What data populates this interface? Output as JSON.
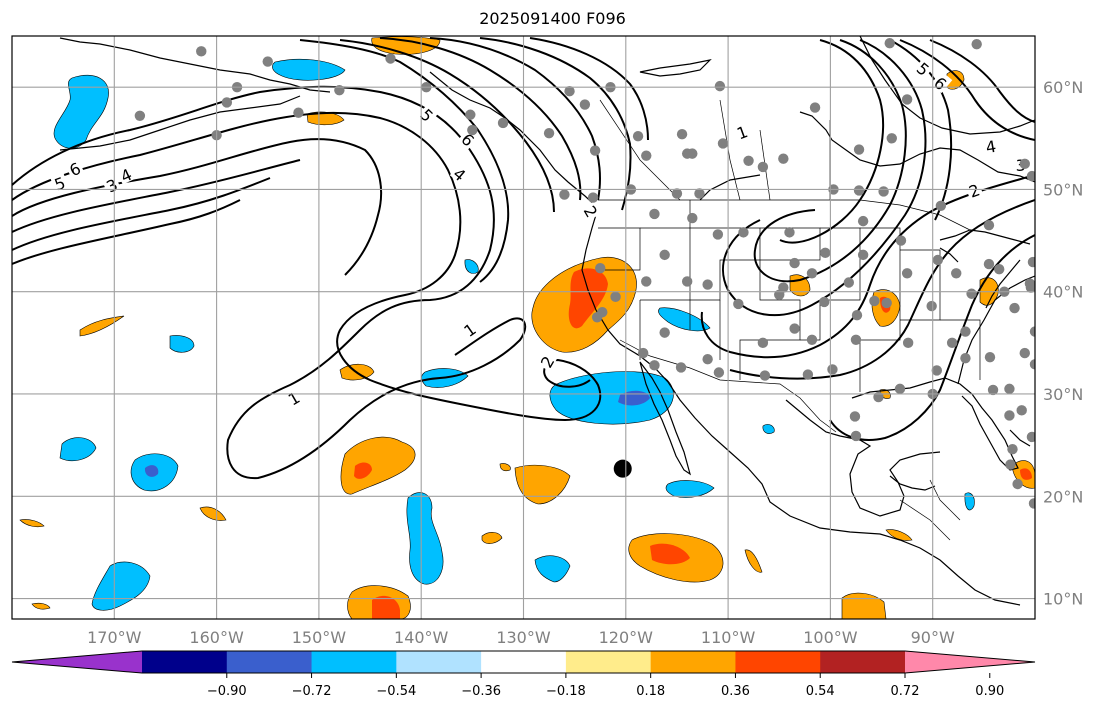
{
  "title": "2025091400 F096",
  "map": {
    "lon_range": [
      -180,
      -80
    ],
    "lat_range": [
      8,
      65
    ],
    "lon_ticks": [
      {
        "value": -170,
        "label": "170°W"
      },
      {
        "value": -160,
        "label": "160°W"
      },
      {
        "value": -150,
        "label": "150°W"
      },
      {
        "value": -140,
        "label": "140°W"
      },
      {
        "value": -130,
        "label": "130°W"
      },
      {
        "value": -120,
        "label": "120°W"
      },
      {
        "value": -110,
        "label": "110°W"
      },
      {
        "value": -100,
        "label": "100°W"
      },
      {
        "value": -90,
        "label": "90°W"
      }
    ],
    "lat_ticks": [
      {
        "value": 60,
        "label": "60°N"
      },
      {
        "value": 50,
        "label": "50°N"
      },
      {
        "value": 40,
        "label": "40°N"
      },
      {
        "value": 30,
        "label": "30°N"
      },
      {
        "value": 20,
        "label": "20°N"
      },
      {
        "value": 10,
        "label": "10°N"
      }
    ],
    "grid": true,
    "marker_big": {
      "lon": -120.3,
      "lat": 22.7,
      "color": "#000000"
    },
    "station_color": "#808080",
    "stations": [
      [
        -161.5,
        63.5
      ],
      [
        -155,
        62.5
      ],
      [
        -143,
        62.8
      ],
      [
        -158,
        60
      ],
      [
        -148,
        59.7
      ],
      [
        -167.5,
        57.2
      ],
      [
        -159,
        58.5
      ],
      [
        -152,
        57.5
      ],
      [
        -160,
        55.3
      ],
      [
        -139.5,
        60
      ],
      [
        -132,
        56.5
      ],
      [
        -125.5,
        59.6
      ],
      [
        -124,
        58.3
      ],
      [
        -135.2,
        57.3
      ],
      [
        -135,
        55.8
      ],
      [
        -127.5,
        55.5
      ],
      [
        -121.5,
        60
      ],
      [
        -110.8,
        60.1
      ],
      [
        -94.2,
        64.3
      ],
      [
        -85.7,
        64.2
      ],
      [
        -92.5,
        58.8
      ],
      [
        -101.5,
        58
      ],
      [
        -114.5,
        55.4
      ],
      [
        -118.8,
        55.2
      ],
      [
        -113.5,
        53.5
      ],
      [
        -114,
        53.5
      ],
      [
        -110.5,
        54.5
      ],
      [
        -108,
        52.8
      ],
      [
        -106.6,
        52.2
      ],
      [
        -104.6,
        53
      ],
      [
        -97.2,
        53.9
      ],
      [
        -94,
        55
      ],
      [
        -99.7,
        50
      ],
      [
        -97.2,
        49.9
      ],
      [
        -94.8,
        49.8
      ],
      [
        -89.2,
        48.4
      ],
      [
        -84.5,
        46.5
      ],
      [
        -81,
        52.5
      ],
      [
        -80.3,
        51.3
      ],
      [
        -123,
        53.8
      ],
      [
        -123.2,
        49.2
      ],
      [
        -126,
        49.5
      ],
      [
        -119.5,
        50
      ],
      [
        -115,
        49.6
      ],
      [
        -112.8,
        49.6
      ],
      [
        -118,
        53.3
      ],
      [
        -117.2,
        47.6
      ],
      [
        -113.5,
        47.2
      ],
      [
        -108.5,
        45.8
      ],
      [
        -104,
        45.8
      ],
      [
        -103.5,
        42.8
      ],
      [
        -111,
        45.6
      ],
      [
        -116.2,
        43.6
      ],
      [
        -114,
        41
      ],
      [
        -118,
        41
      ],
      [
        -109,
        38.8
      ],
      [
        -105,
        39.7
      ],
      [
        -112,
        40.7
      ],
      [
        -122.5,
        42.3
      ],
      [
        -122.8,
        37.5
      ],
      [
        -121,
        39.5
      ],
      [
        -122.3,
        38
      ],
      [
        -104.6,
        40.4
      ],
      [
        -101.8,
        41.8
      ],
      [
        -100.5,
        43.8
      ],
      [
        -96.8,
        46.9
      ],
      [
        -96.8,
        43.6
      ],
      [
        -98.2,
        40.9
      ],
      [
        -100.6,
        39
      ],
      [
        -97.4,
        37.7
      ],
      [
        -95.7,
        39.1
      ],
      [
        -93.1,
        45
      ],
      [
        -92.5,
        41.8
      ],
      [
        -89.5,
        43.1
      ],
      [
        -87.7,
        41.8
      ],
      [
        -86.2,
        39.8
      ],
      [
        -84.5,
        42.7
      ],
      [
        -83,
        40
      ],
      [
        -80.4,
        40.4
      ],
      [
        -88.1,
        35
      ],
      [
        -86.8,
        36.1
      ],
      [
        -90.1,
        38.6
      ],
      [
        -94.5,
        38.9
      ],
      [
        -92.4,
        35
      ],
      [
        -84.4,
        33.6
      ],
      [
        -86.8,
        33.5
      ],
      [
        -89.6,
        32.3
      ],
      [
        -90,
        30
      ],
      [
        -93.2,
        30.5
      ],
      [
        -95.3,
        29.7
      ],
      [
        -97.5,
        35.3
      ],
      [
        -99.8,
        32.4
      ],
      [
        -101.8,
        35.3
      ],
      [
        -106.6,
        35
      ],
      [
        -103.5,
        36.4
      ],
      [
        -110.9,
        32.1
      ],
      [
        -112,
        33.4
      ],
      [
        -114.6,
        32.6
      ],
      [
        -117.2,
        32.8
      ],
      [
        -118.3,
        34
      ],
      [
        -116.2,
        36
      ],
      [
        -106.4,
        31.8
      ],
      [
        -102.2,
        31.9
      ],
      [
        -97.5,
        25.9
      ],
      [
        -97.6,
        27.8
      ],
      [
        -82.5,
        27.9
      ],
      [
        -81.3,
        28.4
      ],
      [
        -80.3,
        25.8
      ],
      [
        -84.1,
        30.4
      ],
      [
        -82.5,
        30.5
      ],
      [
        -80,
        32.9
      ],
      [
        -81,
        34
      ],
      [
        -80,
        36.1
      ],
      [
        -82,
        38.4
      ],
      [
        -80.5,
        40.8
      ],
      [
        -83.5,
        42.2
      ],
      [
        -80.2,
        42.9
      ],
      [
        -81.7,
        21.2
      ],
      [
        -80.1,
        19.3
      ],
      [
        -82.2,
        24.6
      ],
      [
        -82.4,
        23.1
      ]
    ],
    "contour_labels": [
      {
        "text": "6",
        "lon": -173.8,
        "lat": 51.9,
        "rot": -25
      },
      {
        "text": "5",
        "lon": -175.3,
        "lat": 50.5,
        "rot": -20
      },
      {
        "text": "4",
        "lon": -168.8,
        "lat": 51.3,
        "rot": -25
      },
      {
        "text": "3",
        "lon": -170.2,
        "lat": 50.3,
        "rot": -25
      },
      {
        "text": "5",
        "lon": -139.5,
        "lat": 57.2,
        "rot": 45
      },
      {
        "text": "6",
        "lon": -135.5,
        "lat": 54.8,
        "rot": 45
      },
      {
        "text": "4",
        "lon": -136.3,
        "lat": 51.4,
        "rot": 40
      },
      {
        "text": "2",
        "lon": -123.5,
        "lat": 47.8,
        "rot": 60
      },
      {
        "text": "1",
        "lon": -135.2,
        "lat": 36.2,
        "rot": -35
      },
      {
        "text": "2",
        "lon": -127.6,
        "lat": 33.1,
        "rot": -60
      },
      {
        "text": "1",
        "lon": -152.4,
        "lat": 29.5,
        "rot": -30
      },
      {
        "text": "1",
        "lon": -108.6,
        "lat": 55.5,
        "rot": -20
      },
      {
        "text": "4",
        "lon": -84.3,
        "lat": 54.1,
        "rot": -10
      },
      {
        "text": "2",
        "lon": -85.9,
        "lat": 49.8,
        "rot": -20
      },
      {
        "text": "5",
        "lon": -91,
        "lat": 61.7,
        "rot": 40
      },
      {
        "text": "6",
        "lon": -89.3,
        "lat": 60.3,
        "rot": 40
      },
      {
        "text": "3",
        "lon": -81.4,
        "lat": 52.3,
        "rot": 0
      }
    ]
  },
  "colorbar": {
    "colors": [
      "#9932cc",
      "#00008b",
      "#3a5fcd",
      "#00bfff",
      "#b0e2ff",
      "#ffffff",
      "#ffec8b",
      "#ffa500",
      "#ff4500",
      "#b22222",
      "#ff88aa"
    ],
    "tick_labels": [
      "−0.90",
      "−0.72",
      "−0.54",
      "−0.36",
      "−0.18",
      "0.18",
      "0.36",
      "0.54",
      "0.72",
      "0.90"
    ]
  }
}
